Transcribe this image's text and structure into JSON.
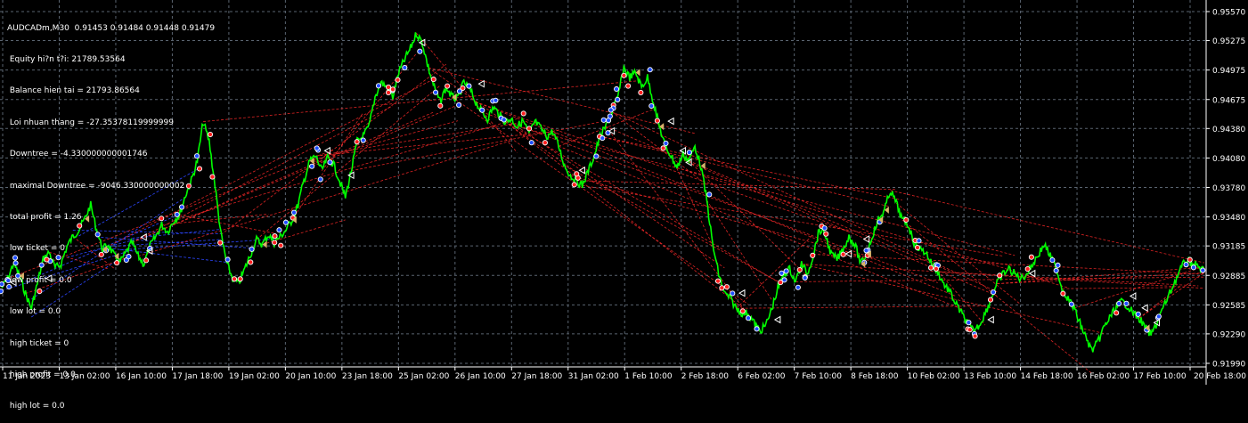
{
  "window": {
    "title": "AUDCADm,M30  0.91453 0.91484 0.91448 0.91479"
  },
  "info_lines": [
    " Equity hi?n t?i: 21789.53564",
    " Balance hien tai = 21793.86564",
    " Loi nhuan thang = -27.35378119999999",
    " Downtree = -4.330000000001746",
    " maximal Downtree = -9046.330000000002",
    " total profit = 1.26",
    " low ticket = 0",
    " low profit = 0.0",
    " low lot = 0.0",
    " high ticket = 0",
    " high profit = 0.0",
    " high lot = 0.0"
  ],
  "colors": {
    "background": "#000000",
    "grid": "#5a6470",
    "axis_text": "#ffffff",
    "price_line": "#00ff00",
    "trade_line": "#ff2a2a",
    "blue_line": "#2c46ff",
    "buy_marker": "#1e4dff",
    "sell_marker": "#ff2020",
    "close_marker": "#ffffff",
    "arrow_marker": "#d9b36a"
  },
  "chart_data": {
    "type": "line",
    "symbol": "AUDCADm",
    "timeframe": "M30",
    "ohlc_last": {
      "open": 0.91453,
      "high": 0.91484,
      "low": 0.91448,
      "close": 0.91479
    },
    "x_ticks": [
      "11 Jan 2023",
      "13 Jan 02:00",
      "16 Jan 10:00",
      "17 Jan 18:00",
      "19 Jan 02:00",
      "20 Jan 10:00",
      "23 Jan 18:00",
      "25 Jan 02:00",
      "26 Jan 10:00",
      "27 Jan 18:00",
      "31 Jan 02:00",
      "1 Feb 10:00",
      "2 Feb 18:00",
      "6 Feb 02:00",
      "7 Feb 10:00",
      "8 Feb 18:00",
      "10 Feb 02:00",
      "13 Feb 10:00",
      "14 Feb 18:00",
      "16 Feb 02:00",
      "17 Feb 10:00",
      "20 Feb 18:00"
    ],
    "y_ticks": [
      0.9557,
      0.95275,
      0.94975,
      0.94675,
      0.9438,
      0.9408,
      0.9378,
      0.9348,
      0.93185,
      0.92885,
      0.92585,
      0.9229,
      0.9199
    ],
    "ylim": [
      0.9199,
      0.9557
    ],
    "series": [
      {
        "values": [
          0.9276,
          0.9285,
          0.9301,
          0.9288,
          0.927,
          0.9255,
          0.928,
          0.9305,
          0.9312,
          0.9296,
          0.93,
          0.9318,
          0.9328,
          0.9335,
          0.9346,
          0.936,
          0.9335,
          0.9315,
          0.932,
          0.9308,
          0.9302,
          0.9312,
          0.9322,
          0.9308,
          0.93,
          0.9318,
          0.9328,
          0.934,
          0.9333,
          0.9344,
          0.935,
          0.937,
          0.9385,
          0.9405,
          0.9445,
          0.9425,
          0.938,
          0.933,
          0.93,
          0.9285,
          0.928,
          0.9295,
          0.931,
          0.9325,
          0.932,
          0.933,
          0.9322,
          0.9328,
          0.9335,
          0.9345,
          0.936,
          0.9385,
          0.9405,
          0.941,
          0.9395,
          0.9408,
          0.9402,
          0.9385,
          0.9368,
          0.9395,
          0.9425,
          0.943,
          0.944,
          0.947,
          0.9485,
          0.948,
          0.947,
          0.9495,
          0.9508,
          0.952,
          0.9535,
          0.9525,
          0.95,
          0.948,
          0.9465,
          0.948,
          0.947,
          0.9468,
          0.9485,
          0.9478,
          0.9465,
          0.9455,
          0.9448,
          0.946,
          0.9452,
          0.9445,
          0.9448,
          0.944,
          0.9446,
          0.9432,
          0.9445,
          0.9438,
          0.943,
          0.9435,
          0.942,
          0.94,
          0.939,
          0.9385,
          0.938,
          0.9395,
          0.941,
          0.943,
          0.944,
          0.9455,
          0.947,
          0.95,
          0.949,
          0.9495,
          0.948,
          0.949,
          0.9465,
          0.944,
          0.942,
          0.941,
          0.9398,
          0.9412,
          0.9405,
          0.942,
          0.94,
          0.9365,
          0.932,
          0.929,
          0.927,
          0.9265,
          0.9255,
          0.925,
          0.925,
          0.924,
          0.9232,
          0.9238,
          0.9255,
          0.9275,
          0.929,
          0.9295,
          0.9282,
          0.93,
          0.929,
          0.931,
          0.9335,
          0.933,
          0.931,
          0.9305,
          0.9315,
          0.9328,
          0.932,
          0.93,
          0.931,
          0.933,
          0.9345,
          0.9355,
          0.9375,
          0.9362,
          0.9345,
          0.934,
          0.9322,
          0.9315,
          0.9312,
          0.93,
          0.9292,
          0.928,
          0.9272,
          0.926,
          0.925,
          0.924,
          0.9232,
          0.9238,
          0.925,
          0.9265,
          0.928,
          0.929,
          0.9295,
          0.929,
          0.9285,
          0.929,
          0.93,
          0.931,
          0.932,
          0.9308,
          0.9295,
          0.9275,
          0.9265,
          0.9255,
          0.924,
          0.9225,
          0.9212,
          0.922,
          0.9235,
          0.9245,
          0.9255,
          0.9262,
          0.9258,
          0.925,
          0.9245,
          0.9235,
          0.9228,
          0.924,
          0.9255,
          0.9268,
          0.9282,
          0.9295,
          0.9305,
          0.93,
          0.9298,
          0.9292
        ]
      }
    ],
    "grid": true,
    "legend": "none"
  }
}
